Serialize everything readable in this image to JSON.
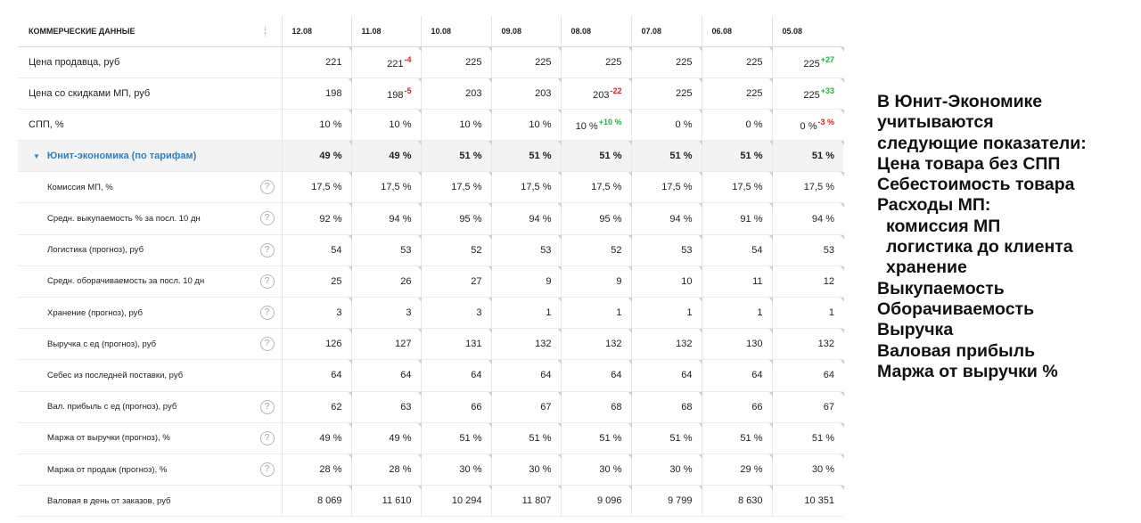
{
  "table": {
    "header_label": "Коммерческие данные",
    "sort_icon": "↓↑",
    "dates": [
      "12.08",
      "11.08",
      "10.08",
      "09.08",
      "08.08",
      "07.08",
      "06.08",
      "05.08"
    ],
    "rows": [
      {
        "label": "Цена продавца, руб",
        "level": "main",
        "help": false,
        "values": [
          "221",
          "221",
          "225",
          "225",
          "225",
          "225",
          "225",
          "225"
        ],
        "deltas": [
          "",
          "-4",
          "",
          "",
          "",
          "",
          "",
          "+27"
        ]
      },
      {
        "label": "Цена со скидками МП, руб",
        "level": "main",
        "help": false,
        "values": [
          "198",
          "198",
          "203",
          "203",
          "203",
          "225",
          "225",
          "225"
        ],
        "deltas": [
          "",
          "-5",
          "",
          "",
          "-22",
          "",
          "",
          "+33"
        ]
      },
      {
        "label": "СПП, %",
        "level": "main",
        "help": false,
        "values": [
          "10 %",
          "10 %",
          "10 %",
          "10 %",
          "10 %",
          "0 %",
          "0 %",
          "0 %"
        ],
        "deltas": [
          "",
          "",
          "",
          "",
          "+10 %",
          "",
          "",
          "-3 %"
        ]
      },
      {
        "label": "Юнит-экономика (по тарифам)",
        "level": "group",
        "help": false,
        "values": [
          "49 %",
          "49 %",
          "51 %",
          "51 %",
          "51 %",
          "51 %",
          "51 %",
          "51 %"
        ],
        "deltas": [
          "",
          "",
          "",
          "",
          "",
          "",
          "",
          ""
        ]
      },
      {
        "label": "Комиссия МП, %",
        "level": "sub",
        "help": true,
        "values": [
          "17,5 %",
          "17,5 %",
          "17,5 %",
          "17,5 %",
          "17,5 %",
          "17,5 %",
          "17,5 %",
          "17,5 %"
        ],
        "deltas": [
          "",
          "",
          "",
          "",
          "",
          "",
          "",
          ""
        ]
      },
      {
        "label": "Средн. выкупаемость % за посл. 10 дн",
        "level": "sub",
        "help": true,
        "values": [
          "92 %",
          "94 %",
          "95 %",
          "94 %",
          "95 %",
          "94 %",
          "91 %",
          "94 %"
        ],
        "deltas": [
          "",
          "",
          "",
          "",
          "",
          "",
          "",
          ""
        ]
      },
      {
        "label": "Логистика (прогноз), руб",
        "level": "sub",
        "help": true,
        "values": [
          "54",
          "53",
          "52",
          "53",
          "52",
          "53",
          "54",
          "53"
        ],
        "deltas": [
          "",
          "",
          "",
          "",
          "",
          "",
          "",
          ""
        ]
      },
      {
        "label": "Средн. оборачиваемость за посл. 10 дн",
        "level": "sub",
        "help": true,
        "values": [
          "25",
          "26",
          "27",
          "9",
          "9",
          "10",
          "11",
          "12"
        ],
        "deltas": [
          "",
          "",
          "",
          "",
          "",
          "",
          "",
          ""
        ]
      },
      {
        "label": "Хранение (прогноз), руб",
        "level": "sub",
        "help": true,
        "values": [
          "3",
          "3",
          "3",
          "1",
          "1",
          "1",
          "1",
          "1"
        ],
        "deltas": [
          "",
          "",
          "",
          "",
          "",
          "",
          "",
          ""
        ]
      },
      {
        "label": "Выручка с ед (прогноз), руб",
        "level": "sub",
        "help": true,
        "values": [
          "126",
          "127",
          "131",
          "132",
          "132",
          "132",
          "130",
          "132"
        ],
        "deltas": [
          "",
          "",
          "",
          "",
          "",
          "",
          "",
          ""
        ]
      },
      {
        "label": "Себес из последней поставки, руб",
        "level": "sub",
        "help": false,
        "values": [
          "64",
          "64",
          "64",
          "64",
          "64",
          "64",
          "64",
          "64"
        ],
        "deltas": [
          "",
          "",
          "",
          "",
          "",
          "",
          "",
          ""
        ]
      },
      {
        "label": "Вал. прибыль с ед (прогноз), руб",
        "level": "sub",
        "help": true,
        "values": [
          "62",
          "63",
          "66",
          "67",
          "68",
          "68",
          "66",
          "67"
        ],
        "deltas": [
          "",
          "",
          "",
          "",
          "",
          "",
          "",
          ""
        ]
      },
      {
        "label": "Маржа от выручки (прогноз), %",
        "level": "sub",
        "help": true,
        "values": [
          "49 %",
          "49 %",
          "51 %",
          "51 %",
          "51 %",
          "51 %",
          "51 %",
          "51 %"
        ],
        "deltas": [
          "",
          "",
          "",
          "",
          "",
          "",
          "",
          ""
        ]
      },
      {
        "label": "Маржа от продаж (прогноз), %",
        "level": "sub",
        "help": true,
        "values": [
          "28 %",
          "28 %",
          "30 %",
          "30 %",
          "30 %",
          "30 %",
          "29 %",
          "30 %"
        ],
        "deltas": [
          "",
          "",
          "",
          "",
          "",
          "",
          "",
          ""
        ]
      },
      {
        "label": "Валовая в день от заказов, руб",
        "level": "sub",
        "help": false,
        "values": [
          "8 069",
          "11 610",
          "10 294",
          "11 807",
          "9 096",
          "9 799",
          "8 630",
          "10 351"
        ],
        "deltas": [
          "",
          "",
          "",
          "",
          "",
          "",
          "",
          ""
        ]
      }
    ]
  },
  "note": {
    "lines": [
      {
        "text": "В  Юнит-Экономике",
        "indent": false
      },
      {
        "text": "учитываются",
        "indent": false
      },
      {
        "text": "следующие показатели:",
        "indent": false
      },
      {
        "text": "Цена товара без СПП",
        "indent": false
      },
      {
        "text": "Себестоимость товара",
        "indent": false
      },
      {
        "text": "Расходы МП:",
        "indent": false
      },
      {
        "text": "комиссия МП",
        "indent": true
      },
      {
        "text": "логистика до клиента",
        "indent": true
      },
      {
        "text": "хранение",
        "indent": true
      },
      {
        "text": "Выкупаемость",
        "indent": false
      },
      {
        "text": "Оборачиваемость",
        "indent": false
      },
      {
        "text": "Выручка",
        "indent": false
      },
      {
        "text": "Валовая прибыль",
        "indent": false
      },
      {
        "text": "Маржа от выручки %",
        "indent": false
      }
    ]
  }
}
